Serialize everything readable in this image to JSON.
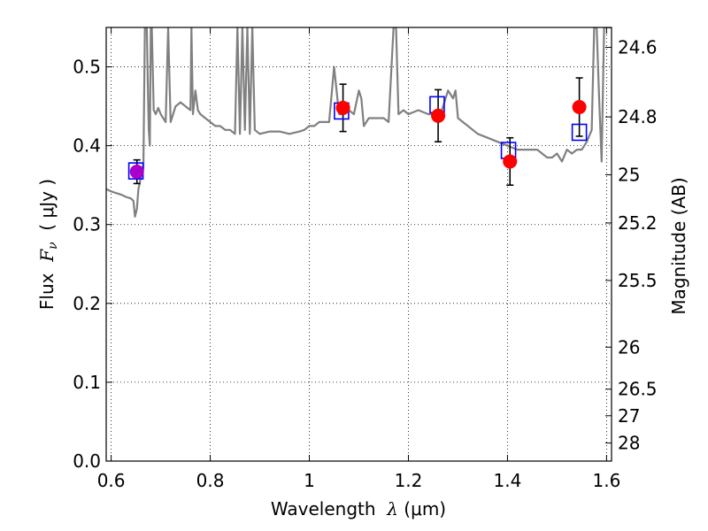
{
  "chart_data": {
    "type": "scatter",
    "title": "",
    "xlabel": {
      "prefix": "Wavelength  ",
      "symbol": "λ",
      "unit": " (μm)"
    },
    "ylabel": {
      "prefix": "Flux  ",
      "symbol": "F",
      "subscript": "ν",
      "unit": "  ( μJy )"
    },
    "y2label": "Magnitude (AB)",
    "xlim": [
      0.59,
      1.61
    ],
    "ylim": [
      0.0,
      0.55
    ],
    "grid": true,
    "grid_style": "dotted",
    "x_ticks": [
      0.6,
      0.8,
      1.0,
      1.2,
      1.4,
      1.6
    ],
    "x_tick_labels": [
      "0.6",
      "0.8",
      "1",
      "1.2",
      "1.4",
      "1.6"
    ],
    "y_ticks": [
      0.0,
      0.1,
      0.2,
      0.3,
      0.4,
      0.5
    ],
    "y_tick_labels": [
      "0.0",
      "0.1",
      "0.2",
      "0.3",
      "0.4",
      "0.5"
    ],
    "y2_ticks": [
      {
        "label": "24.6",
        "flux": 0.5248
      },
      {
        "label": "24.8",
        "flux": 0.4365
      },
      {
        "label": "25",
        "flux": 0.3631
      },
      {
        "label": "25.2",
        "flux": 0.302
      },
      {
        "label": "25.5",
        "flux": 0.2291
      },
      {
        "label": "26",
        "flux": 0.1445
      },
      {
        "label": "26.5",
        "flux": 0.0912
      },
      {
        "label": "27",
        "flux": 0.0575
      },
      {
        "label": "28",
        "flux": 0.0229
      }
    ],
    "colors": {
      "template": "#808080",
      "observed": "#ff0000",
      "model": "#0000ff",
      "overlap": "#aa00cc",
      "errorbar": "#000000"
    },
    "series": [
      {
        "type": "line",
        "x": [
          0.59,
          0.6,
          0.62,
          0.63,
          0.64,
          0.645,
          0.648,
          0.652,
          0.655,
          0.66,
          0.665,
          0.668,
          0.672,
          0.674,
          0.676,
          0.678,
          0.68,
          0.682,
          0.686,
          0.69,
          0.695,
          0.7,
          0.71,
          0.715,
          0.72,
          0.73,
          0.74,
          0.75,
          0.76,
          0.762,
          0.765,
          0.77,
          0.775,
          0.78,
          0.79,
          0.8,
          0.81,
          0.82,
          0.83,
          0.84,
          0.85,
          0.855,
          0.86,
          0.865,
          0.87,
          0.875,
          0.88,
          0.885,
          0.89,
          0.9,
          0.92,
          0.94,
          0.96,
          0.98,
          0.99,
          1.0,
          1.01,
          1.02,
          1.04,
          1.05,
          1.06,
          1.07,
          1.08,
          1.09,
          1.1,
          1.105,
          1.11,
          1.12,
          1.13,
          1.15,
          1.16,
          1.17,
          1.175,
          1.18,
          1.19,
          1.2,
          1.22,
          1.24,
          1.25,
          1.26,
          1.27,
          1.28,
          1.29,
          1.295,
          1.3,
          1.32,
          1.34,
          1.36,
          1.38,
          1.4,
          1.42,
          1.44,
          1.46,
          1.47,
          1.48,
          1.49,
          1.5,
          1.51,
          1.52,
          1.53,
          1.54,
          1.55,
          1.56,
          1.57,
          1.575,
          1.58,
          1.585,
          1.59,
          1.595,
          1.6,
          1.61
        ],
        "y": [
          0.345,
          0.342,
          0.338,
          0.335,
          0.333,
          0.33,
          0.31,
          0.32,
          0.345,
          0.36,
          0.37,
          0.55,
          0.55,
          0.48,
          0.42,
          0.4,
          0.55,
          0.55,
          0.445,
          0.44,
          0.448,
          0.44,
          0.43,
          0.55,
          0.43,
          0.45,
          0.455,
          0.45,
          0.445,
          0.55,
          0.44,
          0.47,
          0.445,
          0.44,
          0.435,
          0.43,
          0.425,
          0.425,
          0.42,
          0.42,
          0.415,
          0.55,
          0.415,
          0.55,
          0.42,
          0.55,
          0.415,
          0.55,
          0.42,
          0.415,
          0.418,
          0.418,
          0.415,
          0.418,
          0.42,
          0.425,
          0.425,
          0.43,
          0.43,
          0.5,
          0.44,
          0.44,
          0.445,
          0.44,
          0.47,
          0.46,
          0.425,
          0.435,
          0.435,
          0.435,
          0.43,
          0.55,
          0.55,
          0.44,
          0.445,
          0.44,
          0.445,
          0.44,
          0.44,
          0.43,
          0.45,
          0.47,
          0.46,
          0.47,
          0.435,
          0.425,
          0.415,
          0.41,
          0.405,
          0.4,
          0.395,
          0.395,
          0.395,
          0.39,
          0.385,
          0.385,
          0.39,
          0.38,
          0.395,
          0.39,
          0.395,
          0.395,
          0.405,
          0.42,
          0.55,
          0.55,
          0.46,
          0.38,
          0.55,
          0.55,
          0.55
        ]
      },
      {
        "type": "scatter",
        "marker": "circle",
        "x": [
          0.652,
          1.068,
          1.26,
          1.405,
          1.545
        ],
        "y": [
          0.367,
          0.448,
          0.438,
          0.38,
          0.449
        ],
        "yerr": [
          0.015,
          0.03,
          0.033,
          0.03,
          0.037
        ]
      },
      {
        "type": "scatter",
        "marker": "square-open",
        "x": [
          0.65,
          1.065,
          1.258,
          1.402,
          1.545
        ],
        "y": [
          0.368,
          0.444,
          0.452,
          0.394,
          0.417
        ]
      }
    ]
  }
}
